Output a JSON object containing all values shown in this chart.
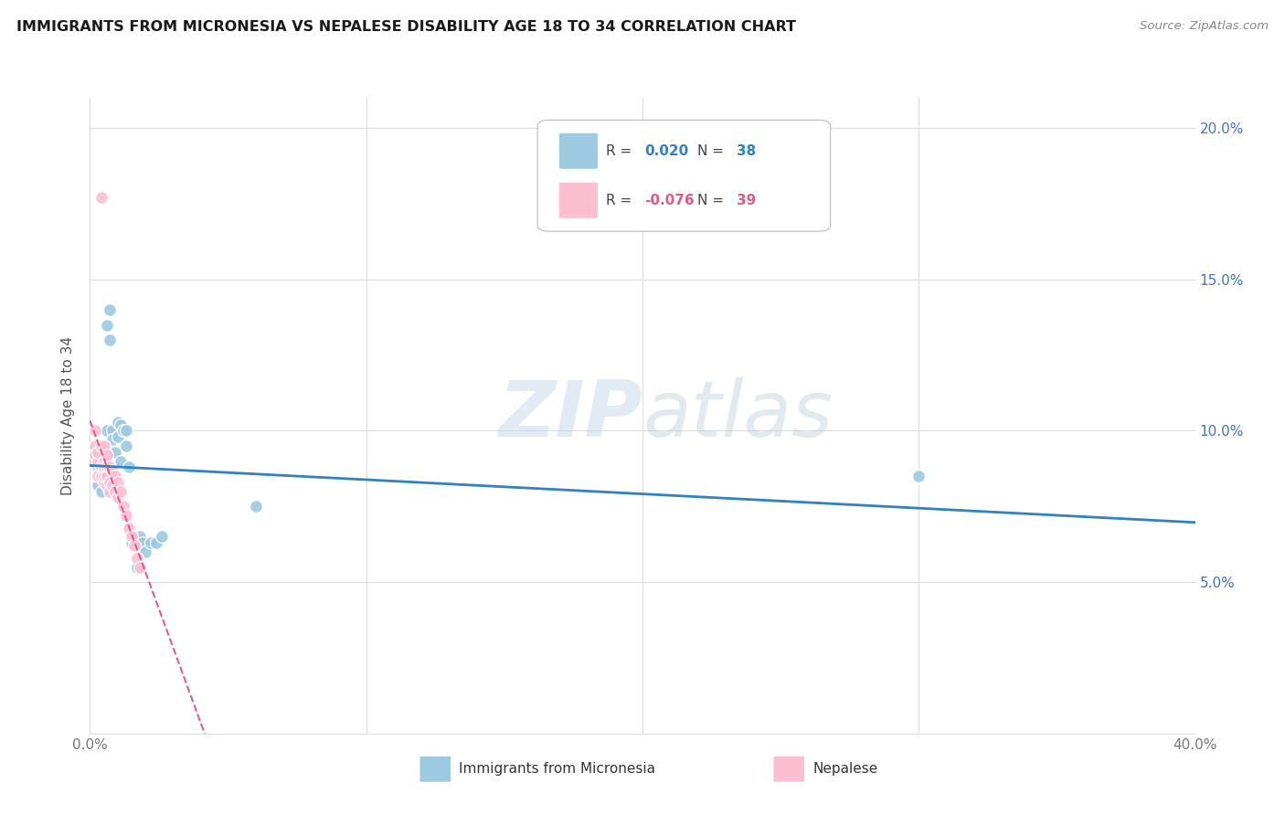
{
  "title": "IMMIGRANTS FROM MICRONESIA VS NEPALESE DISABILITY AGE 18 TO 34 CORRELATION CHART",
  "source": "Source: ZipAtlas.com",
  "ylabel_label": "Disability Age 18 to 34",
  "xlim": [
    0.0,
    0.4
  ],
  "ylim": [
    0.0,
    0.21
  ],
  "x_ticks": [
    0.0,
    0.1,
    0.2,
    0.3,
    0.4
  ],
  "y_ticks": [
    0.05,
    0.1,
    0.15,
    0.2
  ],
  "x_tick_labels": [
    "0.0%",
    "",
    "",
    "",
    "40.0%"
  ],
  "y_tick_labels_right": [
    "5.0%",
    "10.0%",
    "15.0%",
    "20.0%"
  ],
  "color_blue": "#9ecae1",
  "color_pink": "#fcbfd2",
  "color_blue_line": "#3182bd",
  "color_pink_line": "#de5b8a",
  "watermark_zip": "ZIP",
  "watermark_atlas": "atlas",
  "mic_r": "0.020",
  "mic_n": "38",
  "nep_r": "-0.076",
  "nep_n": "39",
  "micronesia_x": [
    0.003,
    0.003,
    0.004,
    0.004,
    0.004,
    0.005,
    0.005,
    0.005,
    0.005,
    0.006,
    0.006,
    0.006,
    0.007,
    0.007,
    0.007,
    0.008,
    0.008,
    0.009,
    0.009,
    0.01,
    0.01,
    0.011,
    0.011,
    0.012,
    0.013,
    0.013,
    0.014,
    0.015,
    0.016,
    0.017,
    0.018,
    0.019,
    0.02,
    0.022,
    0.024,
    0.026,
    0.3,
    0.06
  ],
  "micronesia_y": [
    0.088,
    0.082,
    0.085,
    0.092,
    0.08,
    0.095,
    0.087,
    0.09,
    0.083,
    0.135,
    0.1,
    0.09,
    0.13,
    0.14,
    0.085,
    0.1,
    0.097,
    0.093,
    0.08,
    0.103,
    0.098,
    0.102,
    0.09,
    0.1,
    0.095,
    0.1,
    0.088,
    0.063,
    0.065,
    0.055,
    0.065,
    0.063,
    0.06,
    0.063,
    0.063,
    0.065,
    0.085,
    0.075
  ],
  "nepalese_x": [
    0.001,
    0.002,
    0.002,
    0.002,
    0.003,
    0.003,
    0.003,
    0.003,
    0.004,
    0.004,
    0.004,
    0.005,
    0.005,
    0.005,
    0.005,
    0.005,
    0.005,
    0.006,
    0.006,
    0.006,
    0.006,
    0.007,
    0.007,
    0.007,
    0.008,
    0.008,
    0.009,
    0.009,
    0.01,
    0.01,
    0.011,
    0.012,
    0.013,
    0.014,
    0.015,
    0.016,
    0.017,
    0.018,
    0.004
  ],
  "nepalese_y": [
    0.09,
    0.095,
    0.092,
    0.1,
    0.088,
    0.085,
    0.09,
    0.093,
    0.088,
    0.085,
    0.095,
    0.087,
    0.083,
    0.09,
    0.085,
    0.088,
    0.095,
    0.082,
    0.088,
    0.085,
    0.092,
    0.083,
    0.088,
    0.08,
    0.087,
    0.082,
    0.08,
    0.085,
    0.078,
    0.083,
    0.08,
    0.075,
    0.072,
    0.068,
    0.065,
    0.062,
    0.058,
    0.055,
    0.177
  ]
}
